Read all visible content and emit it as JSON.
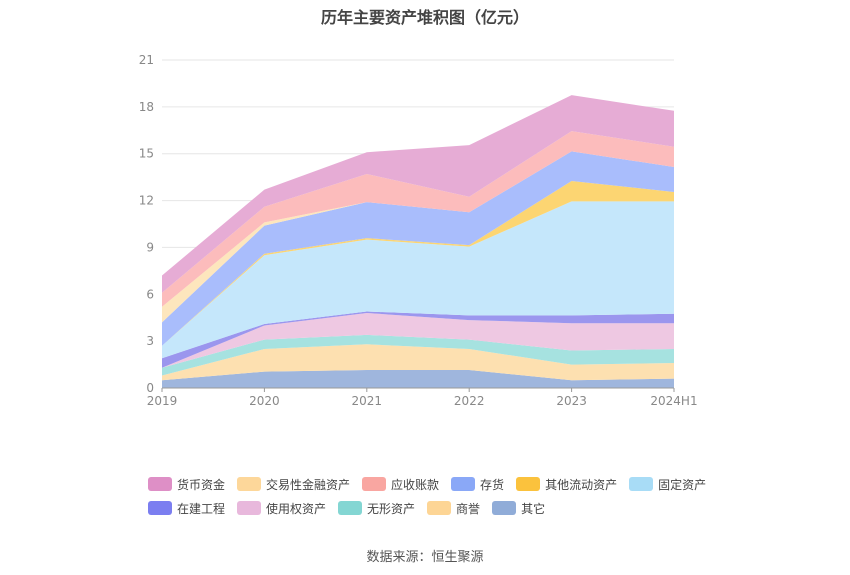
{
  "title": "历年主要资产堆积图（亿元）",
  "source": "数据来源：恒生聚源",
  "chart_data": {
    "type": "area",
    "stacked": true,
    "title": "历年主要资产堆积图（亿元）",
    "x": [
      "2019",
      "2020",
      "2021",
      "2022",
      "2023",
      "2024H1"
    ],
    "ylim": [
      0,
      21
    ],
    "yticks": [
      0,
      3,
      6,
      9,
      12,
      15,
      18,
      21
    ],
    "grid": true,
    "legend_position": "bottom",
    "series": [
      {
        "name": "其它",
        "color": "#9fb6dd",
        "values": [
          0.5,
          1.05,
          1.15,
          1.15,
          0.5,
          0.6
        ]
      },
      {
        "name": "商誉",
        "color": "#fde0b0",
        "values": [
          0.3,
          1.45,
          1.65,
          1.35,
          1.0,
          1.0
        ]
      },
      {
        "name": "无形资产",
        "color": "#a6e2e0",
        "values": [
          0.5,
          0.6,
          0.6,
          0.6,
          0.9,
          0.9
        ]
      },
      {
        "name": "使用权资产",
        "color": "#eec8e2",
        "values": [
          0.0,
          0.9,
          1.4,
          1.25,
          1.75,
          1.65
        ]
      },
      {
        "name": "在建工程",
        "color": "#9b96ee",
        "values": [
          0.6,
          0.1,
          0.1,
          0.3,
          0.5,
          0.6
        ]
      },
      {
        "name": "固定资产",
        "color": "#c5e7fb",
        "values": [
          0.8,
          4.4,
          4.6,
          4.4,
          7.3,
          7.2
        ]
      },
      {
        "name": "其他流动资产",
        "color": "#fcd572",
        "values": [
          0.0,
          0.1,
          0.1,
          0.1,
          1.3,
          0.6
        ]
      },
      {
        "name": "存货",
        "color": "#a9bdfc",
        "values": [
          1.5,
          1.8,
          2.3,
          2.1,
          1.9,
          1.6
        ]
      },
      {
        "name": "交易性金融资产",
        "color": "#fde6bd",
        "values": [
          1.0,
          0.2,
          0.0,
          0.0,
          0.0,
          0.0
        ]
      },
      {
        "name": "应收账款",
        "color": "#fcbcbc",
        "values": [
          0.9,
          1.0,
          1.8,
          1.0,
          1.3,
          1.3
        ]
      },
      {
        "name": "货币资金",
        "color": "#e6acd5",
        "values": [
          1.1,
          1.1,
          1.4,
          3.3,
          2.3,
          2.3
        ]
      }
    ]
  },
  "legend": {
    "row1": [
      {
        "label": "货币资金",
        "color": "#de8fc6"
      },
      {
        "label": "交易性金融资产",
        "color": "#fdd79a"
      },
      {
        "label": "应收账款",
        "color": "#f9a6a1"
      },
      {
        "label": "存货",
        "color": "#8aa8f7"
      },
      {
        "label": "其他流动资产",
        "color": "#fbc23d"
      },
      {
        "label": "固定资产",
        "color": "#a8dcf6"
      }
    ],
    "row2": [
      {
        "label": "在建工程",
        "color": "#7b7ef0"
      },
      {
        "label": "使用权资产",
        "color": "#e8b8dc"
      },
      {
        "label": "无形资产",
        "color": "#84d6d3"
      },
      {
        "label": "商誉",
        "color": "#fdd595"
      },
      {
        "label": "其它",
        "color": "#90acd8"
      }
    ]
  }
}
